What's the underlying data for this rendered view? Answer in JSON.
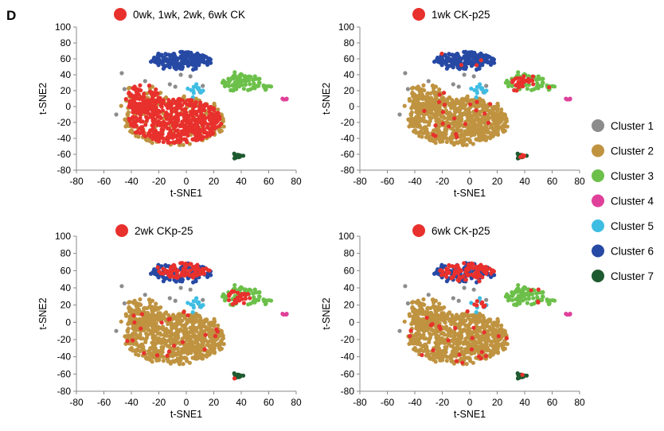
{
  "panel_label": "D",
  "colors": {
    "Cluster 1": "#8c8c8c",
    "Cluster 2": "#bf9340",
    "Cluster 3": "#6cc04a",
    "Cluster 4": "#e0409a",
    "Cluster 5": "#3ebde3",
    "Cluster 6": "#2649a4",
    "Cluster 7": "#1e5a30",
    "highlight": "#e8302c"
  },
  "legend": [
    "Cluster 1",
    "Cluster 2",
    "Cluster 3",
    "Cluster 4",
    "Cluster 5",
    "Cluster 6",
    "Cluster 7"
  ],
  "chart_data": [
    {
      "type": "scatter",
      "title": "0wk, 1wk, 2wk, 6wk CK",
      "xlabel": "t-SNE1",
      "ylabel": "t-SNE2",
      "xlim": [
        -80,
        80
      ],
      "ylim": [
        -80,
        100
      ],
      "xticks": [
        -80,
        -60,
        -40,
        -20,
        0,
        20,
        40,
        60,
        80
      ],
      "yticks": [
        -80,
        -60,
        -40,
        -20,
        0,
        20,
        40,
        60,
        80,
        100
      ],
      "highlighted_group": "control (0wk, 1wk, 2wk, 6wk CK)",
      "highlight_fraction": 0.85
    },
    {
      "type": "scatter",
      "title": "1wk CK-p25",
      "xlabel": "t-SNE1",
      "ylabel": "t-SNE2",
      "xlim": [
        -80,
        80
      ],
      "ylim": [
        -80,
        100
      ],
      "xticks": [
        -80,
        -60,
        -40,
        -20,
        0,
        20,
        40,
        60,
        80
      ],
      "yticks": [
        -80,
        -60,
        -40,
        -20,
        0,
        20,
        40,
        60,
        80,
        100
      ],
      "highlighted_group": "1wk CK-p25",
      "highlight_fraction": 0.2
    },
    {
      "type": "scatter",
      "title": "2wk CKp-25",
      "xlabel": "t-SNE1",
      "ylabel": "t-SNE2",
      "xlim": [
        -80,
        80
      ],
      "ylim": [
        -80,
        100
      ],
      "xticks": [
        -80,
        -60,
        -40,
        -20,
        0,
        20,
        40,
        60,
        80
      ],
      "yticks": [
        -80,
        -60,
        -40,
        -20,
        0,
        20,
        40,
        60,
        80,
        100
      ],
      "highlighted_group": "2wk CK-p25",
      "highlight_fraction": 0.12
    },
    {
      "type": "scatter",
      "title": "6wk CK-p25",
      "xlabel": "t-SNE1",
      "ylabel": "t-SNE2",
      "xlim": [
        -80,
        80
      ],
      "ylim": [
        -80,
        100
      ],
      "xticks": [
        -80,
        -60,
        -40,
        -20,
        0,
        20,
        40,
        60,
        80
      ],
      "yticks": [
        -80,
        -60,
        -40,
        -20,
        0,
        20,
        40,
        60,
        80,
        100
      ],
      "highlighted_group": "6wk CK-p25",
      "highlight_fraction": 0.12
    }
  ],
  "clusters": [
    {
      "name": "Cluster 1",
      "shape": "scatter",
      "x": [
        -47,
        -30,
        -12,
        -4,
        10,
        12,
        -51,
        -45,
        -8,
        3
      ],
      "y": [
        42,
        32,
        28,
        40,
        18,
        26,
        -10,
        22,
        25,
        38
      ]
    },
    {
      "name": "Cluster 2",
      "shape": "ellipse",
      "cx": -8,
      "cy": -18,
      "rx": 36,
      "ry": 30,
      "n": 700,
      "extra": {
        "cx": -32,
        "cy": 10,
        "rx": 14,
        "ry": 18,
        "n": 120
      }
    },
    {
      "name": "Cluster 3",
      "shape": "ellipse",
      "cx": 40,
      "cy": 30,
      "rx": 14,
      "ry": 11,
      "n": 85,
      "extra": {
        "cx": 55,
        "cy": 24,
        "rx": 6,
        "ry": 4,
        "n": 12
      }
    },
    {
      "name": "Cluster 4",
      "shape": "ellipse",
      "cx": 72,
      "cy": 9,
      "rx": 1.5,
      "ry": 2,
      "n": 5
    },
    {
      "name": "Cluster 5",
      "shape": "ellipse",
      "cx": 7,
      "cy": 22,
      "rx": 6,
      "ry": 8,
      "n": 14
    },
    {
      "name": "Cluster 6",
      "shape": "ellipse",
      "cx": -3,
      "cy": 58,
      "rx": 21,
      "ry": 11,
      "n": 170
    },
    {
      "name": "Cluster 7",
      "shape": "ellipse",
      "cx": 37,
      "cy": -62,
      "rx": 4,
      "ry": 3,
      "n": 14
    }
  ],
  "highlight_regions": [
    [
      {
        "cx": -8,
        "cy": -18,
        "rx": 34,
        "ry": 28
      },
      {
        "cx": -32,
        "cy": 10,
        "rx": 14,
        "ry": 18
      }
    ],
    [
      {
        "cx": 38,
        "cy": 27,
        "rx": 9,
        "ry": 12
      },
      {
        "cx": 38,
        "cy": -62,
        "rx": 4,
        "ry": 3
      },
      {
        "cx": 40,
        "cy": 8,
        "rx": 5,
        "ry": 10
      }
    ],
    [
      {
        "cx": -2,
        "cy": 62,
        "rx": 20,
        "ry": 11
      },
      {
        "cx": 38,
        "cy": 28,
        "rx": 9,
        "ry": 10
      }
    ],
    [
      {
        "cx": -2,
        "cy": 58,
        "rx": 20,
        "ry": 12
      },
      {
        "cx": 5,
        "cy": 22,
        "rx": 9,
        "ry": 6
      }
    ]
  ]
}
